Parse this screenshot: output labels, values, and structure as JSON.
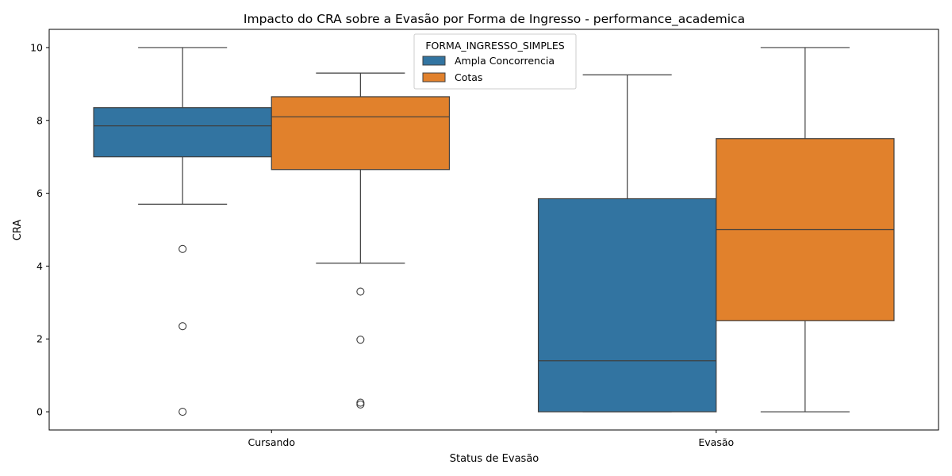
{
  "chart_data": {
    "type": "boxplot",
    "title": "Impacto do CRA sobre a Evasão por Forma de Ingresso - performance_academica",
    "xlabel": "Status de Evasão",
    "ylabel": "CRA",
    "categories": [
      "Cursando",
      "Evasão"
    ],
    "ylim": [
      -0.5,
      10.5
    ],
    "yticks": [
      0,
      2,
      4,
      6,
      8,
      10
    ],
    "grid": false,
    "legend": {
      "title": "FORMA_INGRESSO_SIMPLES",
      "placement": "top-center"
    },
    "series": [
      {
        "name": "Ampla Concorrencia",
        "color": "#3274a1",
        "boxes": [
          {
            "category": "Cursando",
            "whisker_low": 5.7,
            "q1": 7.0,
            "median": 7.85,
            "q3": 8.35,
            "whisker_high": 10.0,
            "outliers": [
              4.47,
              2.35,
              0.0
            ]
          },
          {
            "category": "Evasão",
            "whisker_low": 0.0,
            "q1": 0.0,
            "median": 1.4,
            "q3": 5.85,
            "whisker_high": 9.25,
            "outliers": []
          }
        ]
      },
      {
        "name": "Cotas",
        "color": "#e1812c",
        "boxes": [
          {
            "category": "Cursando",
            "whisker_low": 4.08,
            "q1": 6.65,
            "median": 8.1,
            "q3": 8.65,
            "whisker_high": 9.3,
            "outliers": [
              3.3,
              1.98,
              0.25,
              0.2
            ]
          },
          {
            "category": "Evasão",
            "whisker_low": 0.0,
            "q1": 2.5,
            "median": 5.0,
            "q3": 7.5,
            "whisker_high": 10.0,
            "outliers": []
          }
        ]
      }
    ]
  }
}
